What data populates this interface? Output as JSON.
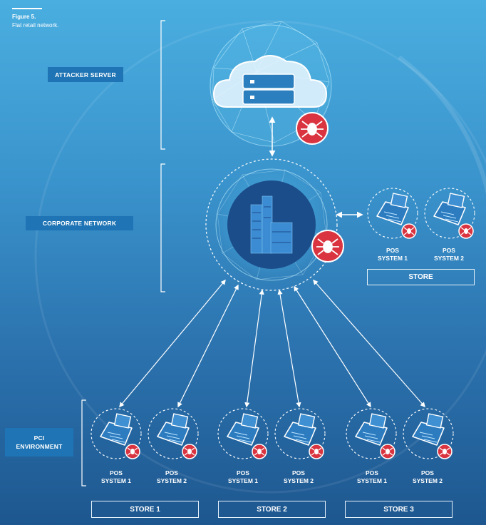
{
  "figure": {
    "number": "Figure 5.",
    "caption": "Flat retail network."
  },
  "sections": {
    "attacker": "ATTACKER SERVER",
    "corporate": "CORPORATE NETWORK",
    "pci": "PCI\nENVIRONMENT"
  },
  "corporate_store": {
    "label": "STORE",
    "pos": [
      {
        "line1": "POS",
        "line2": "SYSTEM 1"
      },
      {
        "line1": "POS",
        "line2": "SYSTEM 2"
      }
    ]
  },
  "pci_stores": [
    {
      "label": "STORE 1",
      "pos": [
        {
          "line1": "POS",
          "line2": "SYSTEM 1"
        },
        {
          "line1": "POS",
          "line2": "SYSTEM 2"
        }
      ]
    },
    {
      "label": "STORE 2",
      "pos": [
        {
          "line1": "POS",
          "line2": "SYSTEM 1"
        },
        {
          "line1": "POS",
          "line2": "SYSTEM 2"
        }
      ]
    },
    {
      "label": "STORE 3",
      "pos": [
        {
          "line1": "POS",
          "line2": "SYSTEM 1"
        },
        {
          "line1": "POS",
          "line2": "SYSTEM 2"
        }
      ]
    }
  ],
  "colors": {
    "accent_tag": "#1e74b4",
    "malware_badge": "#d9343f",
    "building_core": "#1b4d8a"
  },
  "icons": [
    "cloud-server-icon",
    "malware-spider-icon",
    "office-building-icon",
    "pos-terminal-icon"
  ]
}
